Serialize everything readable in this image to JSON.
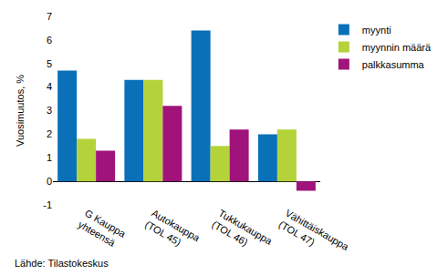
{
  "chart_data": {
    "type": "bar",
    "categories": [
      "G Kauppa yhteensä",
      "Autokauppa (TOL 45)",
      "Tukkukauppa (TOL 46)",
      "Vähittäiskauppa (TOL 47)"
    ],
    "series": [
      {
        "name": "myynti",
        "color": "#0a70b8",
        "values": [
          4.7,
          4.3,
          6.4,
          2.0
        ]
      },
      {
        "name": "myynnin määrä",
        "color": "#b4d23a",
        "values": [
          1.8,
          4.3,
          1.5,
          2.2
        ]
      },
      {
        "name": "palkkasumma",
        "color": "#a0137a",
        "values": [
          1.3,
          3.2,
          2.2,
          -0.4
        ]
      }
    ],
    "y_label": "Vuosimuutos, %",
    "ylim": [
      -1,
      7
    ],
    "yticks": [
      -1,
      0,
      1,
      2,
      3,
      4,
      5,
      6,
      7
    ],
    "grid": false,
    "legend": "top right",
    "source": "Lähde: Tilastokeskus"
  }
}
